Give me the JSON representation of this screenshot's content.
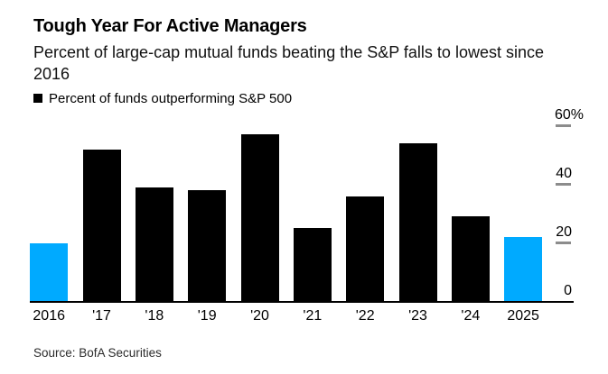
{
  "header": {
    "title": "Tough Year For Active Managers",
    "subtitle": "Percent of large-cap mutual funds beating the S&P falls to lowest since 2016"
  },
  "legend": {
    "label": "Percent of funds outperforming S&P 500",
    "marker_color": "#000000"
  },
  "chart_data": {
    "type": "bar",
    "title": "Tough Year For Active Managers",
    "subtitle": "Percent of large-cap mutual funds beating the S&P falls to lowest since 2016",
    "legend_entry": "Percent of funds outperforming S&P 500",
    "categories": [
      "2016",
      "'17",
      "'18",
      "'19",
      "'20",
      "'21",
      "'22",
      "'23",
      "'24",
      "2025"
    ],
    "values": [
      20,
      52,
      39,
      38,
      57,
      25,
      36,
      54,
      29,
      22
    ],
    "unit": "%",
    "xlabel": "",
    "ylabel": "",
    "ylim": [
      0,
      62
    ],
    "yticks": [
      {
        "label": "60%",
        "value": 60
      },
      {
        "label": "40",
        "value": 40
      },
      {
        "label": "20",
        "value": 20
      },
      {
        "label": "0",
        "value": 0
      }
    ],
    "y_axis_side": "right",
    "grid": false,
    "legend_position": "top-left",
    "default_color": "#000000",
    "highlight_color": "#00aaff",
    "highlighted_categories": [
      "2016",
      "2025"
    ]
  },
  "source": {
    "text": "Source: BofA Securities"
  }
}
